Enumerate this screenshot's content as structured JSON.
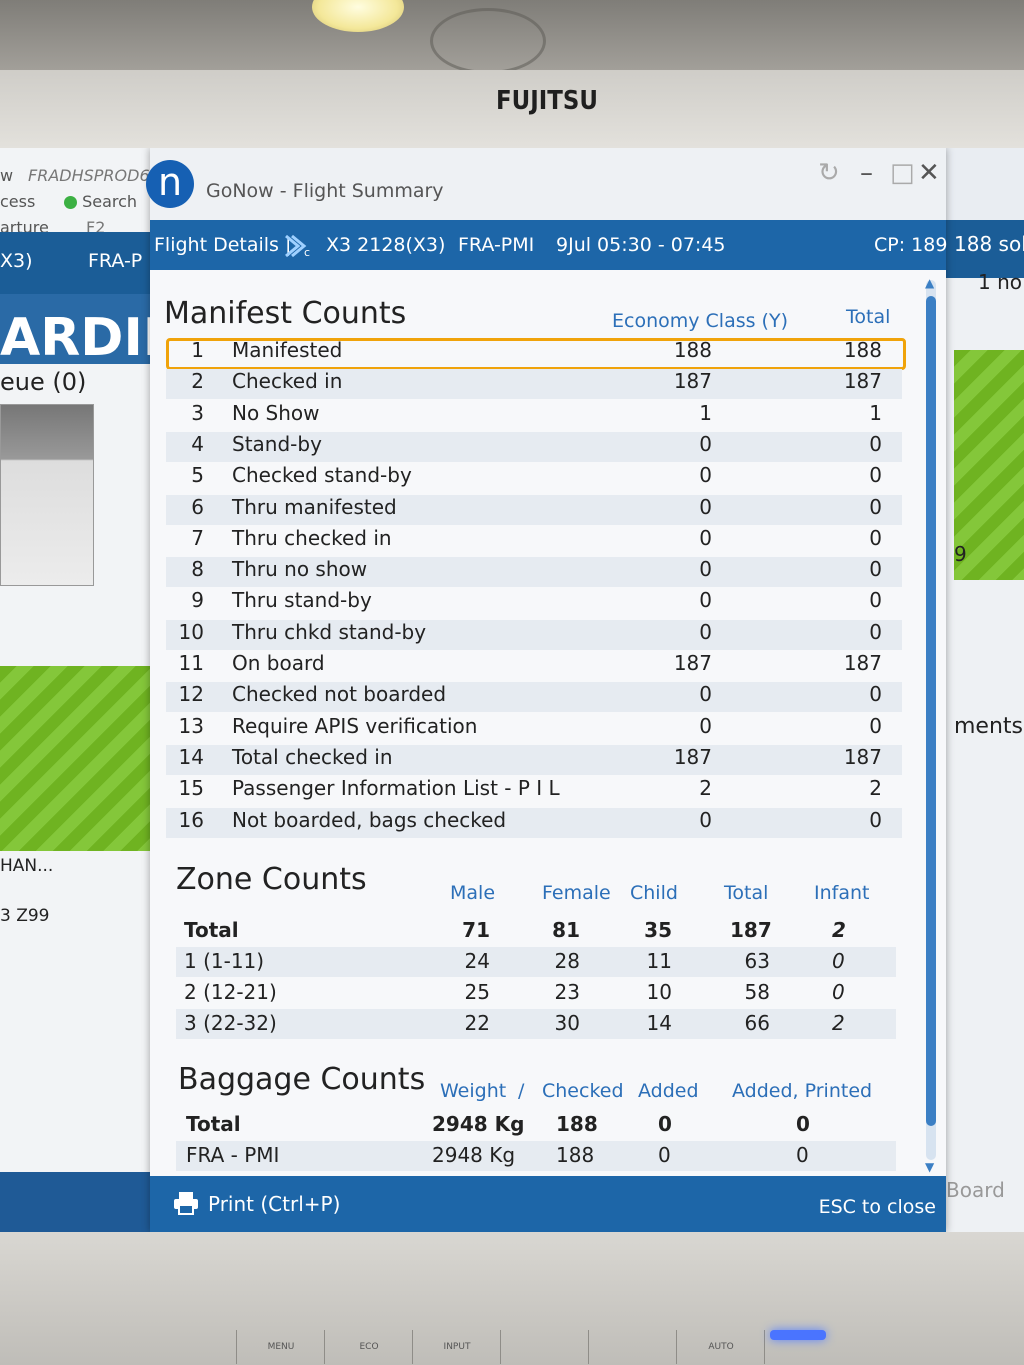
{
  "monitor": {
    "brand": "FUJITSU",
    "buttons": [
      "MENU",
      "ECO",
      "INPUT",
      "",
      "",
      "AUTO",
      ""
    ]
  },
  "background_app": {
    "host": "FRADHSPROD6",
    "menu_w": "w",
    "access": "cess",
    "search_label": "Search",
    "departure": "arture",
    "f2": "F2",
    "flight_code": "X3)",
    "route": "FRA-P",
    "boarding": "ARDIN",
    "queue": "eue (0)",
    "han": "HAN...",
    "z99": "3 Z99"
  },
  "right_app": {
    "sold": "188 sol",
    "no": "1 no",
    "n9": "9",
    "ments": "ments",
    "board": "Board"
  },
  "dialog": {
    "title": "GoNow - Flight Summary",
    "flight_details_label": "Flight Details |",
    "flight": "X3 2128(X3)",
    "route": "FRA-PMI",
    "date_time": "9Jul 05:30 - 07:45",
    "cp": "CP: 189",
    "manifest": {
      "title": "Manifest Counts",
      "col_class": "Economy Class (Y)",
      "col_total": "Total",
      "rows": [
        {
          "n": "1",
          "label": "Manifested",
          "y": "188",
          "total": "188"
        },
        {
          "n": "2",
          "label": "Checked in",
          "y": "187",
          "total": "187"
        },
        {
          "n": "3",
          "label": "No Show",
          "y": "1",
          "total": "1"
        },
        {
          "n": "4",
          "label": "Stand-by",
          "y": "0",
          "total": "0"
        },
        {
          "n": "5",
          "label": "Checked stand-by",
          "y": "0",
          "total": "0"
        },
        {
          "n": "6",
          "label": "Thru manifested",
          "y": "0",
          "total": "0"
        },
        {
          "n": "7",
          "label": "Thru checked in",
          "y": "0",
          "total": "0"
        },
        {
          "n": "8",
          "label": "Thru no show",
          "y": "0",
          "total": "0"
        },
        {
          "n": "9",
          "label": "Thru stand-by",
          "y": "0",
          "total": "0"
        },
        {
          "n": "10",
          "label": "Thru chkd stand-by",
          "y": "0",
          "total": "0"
        },
        {
          "n": "11",
          "label": "On board",
          "y": "187",
          "total": "187"
        },
        {
          "n": "12",
          "label": "Checked not boarded",
          "y": "0",
          "total": "0"
        },
        {
          "n": "13",
          "label": "Require APIS verification",
          "y": "0",
          "total": "0"
        },
        {
          "n": "14",
          "label": "Total checked in",
          "y": "187",
          "total": "187"
        },
        {
          "n": "15",
          "label": "Passenger Information List - P I L",
          "y": "2",
          "total": "2"
        },
        {
          "n": "16",
          "label": "Not boarded, bags checked",
          "y": "0",
          "total": "0"
        }
      ]
    },
    "zone": {
      "title": "Zone Counts",
      "headers": [
        "Male",
        "Female",
        "Child",
        "Total",
        "Infant"
      ],
      "rows": [
        {
          "label": "Total",
          "male": "71",
          "female": "81",
          "child": "35",
          "total": "187",
          "infant": "2"
        },
        {
          "label": "1 (1-11)",
          "male": "24",
          "female": "28",
          "child": "11",
          "total": "63",
          "infant": "0"
        },
        {
          "label": "2 (12-21)",
          "male": "25",
          "female": "23",
          "child": "10",
          "total": "58",
          "infant": "0"
        },
        {
          "label": "3 (22-32)",
          "male": "22",
          "female": "30",
          "child": "14",
          "total": "66",
          "infant": "2"
        }
      ]
    },
    "baggage": {
      "title": "Baggage Counts",
      "headers": [
        "Weight",
        "/",
        "Checked",
        "Added",
        "Added, Printed"
      ],
      "rows": [
        {
          "label": "Total",
          "weight": "2948 Kg",
          "checked": "188",
          "added": "0",
          "printed": "0"
        },
        {
          "label": "FRA - PMI",
          "weight": "2948 Kg",
          "checked": "188",
          "added": "0",
          "printed": "0"
        }
      ]
    },
    "print_label": "Print (Ctrl+P)",
    "esc_label": "ESC to close"
  },
  "colors": {
    "accent_blue": "#1d66a8",
    "header_blue": "#2c6fb8",
    "highlight": "#f0a30a"
  }
}
